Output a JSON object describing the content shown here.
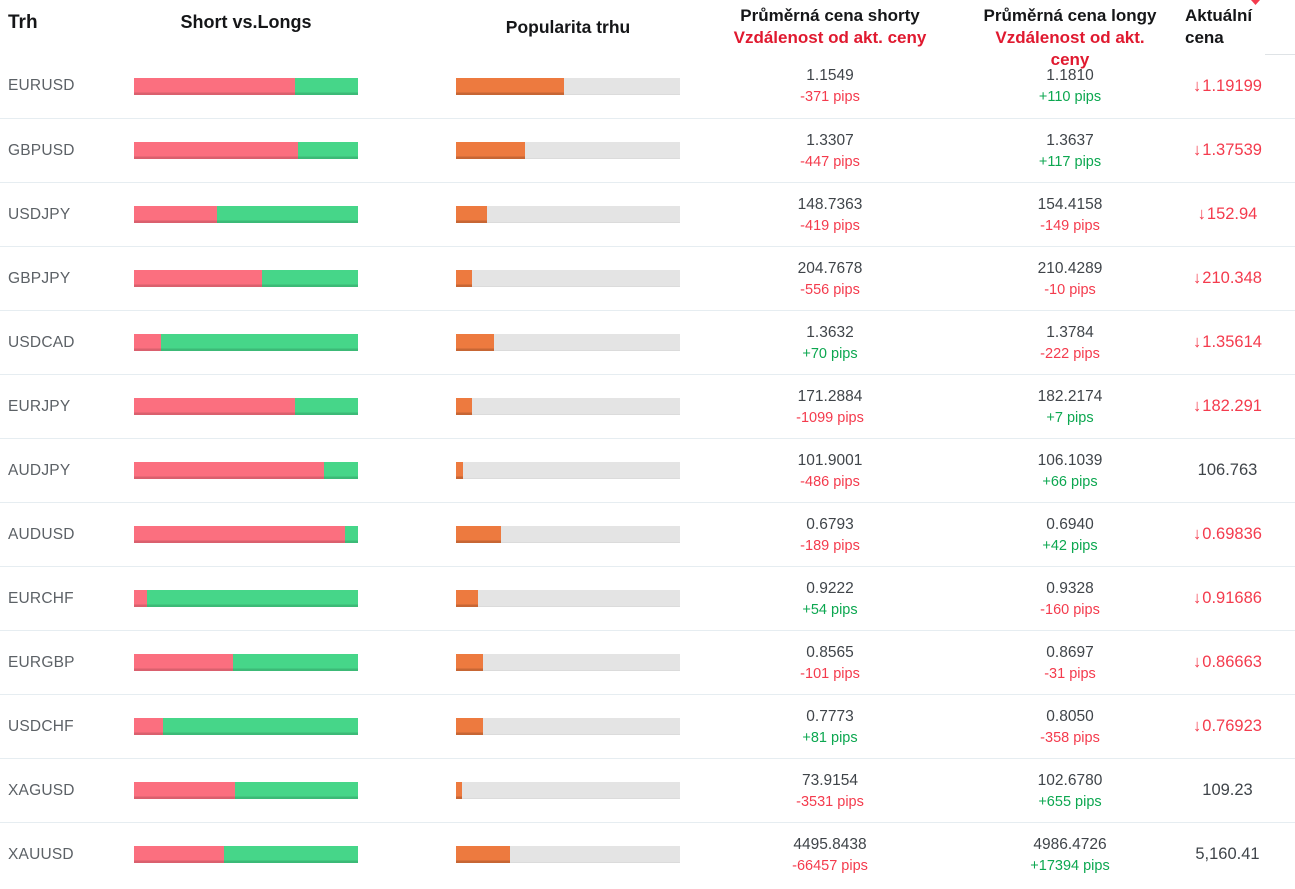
{
  "colors": {
    "bar-short": "#FB6F7F",
    "bar-long": "#46D689",
    "bar-pop": "#ED7A3F",
    "bar-track": "#E4E4E4",
    "neg": "#F43B4D",
    "pos": "#0CA750",
    "header-red": "#E0192F",
    "text-gray": "#5C6166",
    "text-value": "#3F4449",
    "divider": "#E6EDF1"
  },
  "icons": {
    "down_arrow": "↓"
  },
  "header": {
    "market": "Trh",
    "short_vs_longs": "Short vs.Longs",
    "popularity": "Popularita trhu",
    "short_price_line1": "Průměrná cena shorty",
    "short_price_line2": "Vzdálenost od akt. ceny",
    "long_price_line1": "Průměrná cena longy",
    "long_price_line2": "Vzdálenost od akt. ceny",
    "current_line1": "Aktuální",
    "current_line2": "cena"
  },
  "chart_data": {
    "type": "table",
    "note": "short_pct = red share of Short vs.Longs bar (%); popularity_pct = orange fill of Popularita trhu bar (%)"
  },
  "rows": [
    {
      "market": "EURUSD",
      "short_pct": 72,
      "popularity_pct": 48,
      "short_price": "1.1549",
      "short_pips": "-371 pips",
      "long_price": "1.1810",
      "long_pips": "+110 pips",
      "current": "1.19199",
      "current_down": true
    },
    {
      "market": "GBPUSD",
      "short_pct": 73,
      "popularity_pct": 31,
      "short_price": "1.3307",
      "short_pips": "-447 pips",
      "long_price": "1.3637",
      "long_pips": "+117 pips",
      "current": "1.37539",
      "current_down": true
    },
    {
      "market": "USDJPY",
      "short_pct": 37,
      "popularity_pct": 14,
      "short_price": "148.7363",
      "short_pips": "-419 pips",
      "long_price": "154.4158",
      "long_pips": "-149 pips",
      "current": "152.94",
      "current_down": true
    },
    {
      "market": "GBPJPY",
      "short_pct": 57,
      "popularity_pct": 7,
      "short_price": "204.7678",
      "short_pips": "-556 pips",
      "long_price": "210.4289",
      "long_pips": "-10 pips",
      "current": "210.348",
      "current_down": true
    },
    {
      "market": "USDCAD",
      "short_pct": 12,
      "popularity_pct": 17,
      "short_price": "1.3632",
      "short_pips": "+70 pips",
      "long_price": "1.3784",
      "long_pips": "-222 pips",
      "current": "1.35614",
      "current_down": true
    },
    {
      "market": "EURJPY",
      "short_pct": 72,
      "popularity_pct": 7,
      "short_price": "171.2884",
      "short_pips": "-1099 pips",
      "long_price": "182.2174",
      "long_pips": "+7 pips",
      "current": "182.291",
      "current_down": true
    },
    {
      "market": "AUDJPY",
      "short_pct": 85,
      "popularity_pct": 3,
      "short_price": "101.9001",
      "short_pips": "-486 pips",
      "long_price": "106.1039",
      "long_pips": "+66 pips",
      "current": "106.763",
      "current_down": false
    },
    {
      "market": "AUDUSD",
      "short_pct": 94,
      "popularity_pct": 20,
      "short_price": "0.6793",
      "short_pips": "-189 pips",
      "long_price": "0.6940",
      "long_pips": "+42 pips",
      "current": "0.69836",
      "current_down": true
    },
    {
      "market": "EURCHF",
      "short_pct": 6,
      "popularity_pct": 10,
      "short_price": "0.9222",
      "short_pips": "+54 pips",
      "long_price": "0.9328",
      "long_pips": "-160 pips",
      "current": "0.91686",
      "current_down": true
    },
    {
      "market": "EURGBP",
      "short_pct": 44,
      "popularity_pct": 12,
      "short_price": "0.8565",
      "short_pips": "-101 pips",
      "long_price": "0.8697",
      "long_pips": "-31 pips",
      "current": "0.86663",
      "current_down": true
    },
    {
      "market": "USDCHF",
      "short_pct": 13,
      "popularity_pct": 12,
      "short_price": "0.7773",
      "short_pips": "+81 pips",
      "long_price": "0.8050",
      "long_pips": "-358 pips",
      "current": "0.76923",
      "current_down": true
    },
    {
      "market": "XAGUSD",
      "short_pct": 45,
      "popularity_pct": 2.5,
      "short_price": "73.9154",
      "short_pips": "-3531 pips",
      "long_price": "102.6780",
      "long_pips": "+655 pips",
      "current": "109.23",
      "current_down": false
    },
    {
      "market": "XAUUSD",
      "short_pct": 40,
      "popularity_pct": 24,
      "short_price": "4495.8438",
      "short_pips": "-66457 pips",
      "long_price": "4986.4726",
      "long_pips": "+17394 pips",
      "current": "5,160.41",
      "current_down": false
    }
  ]
}
